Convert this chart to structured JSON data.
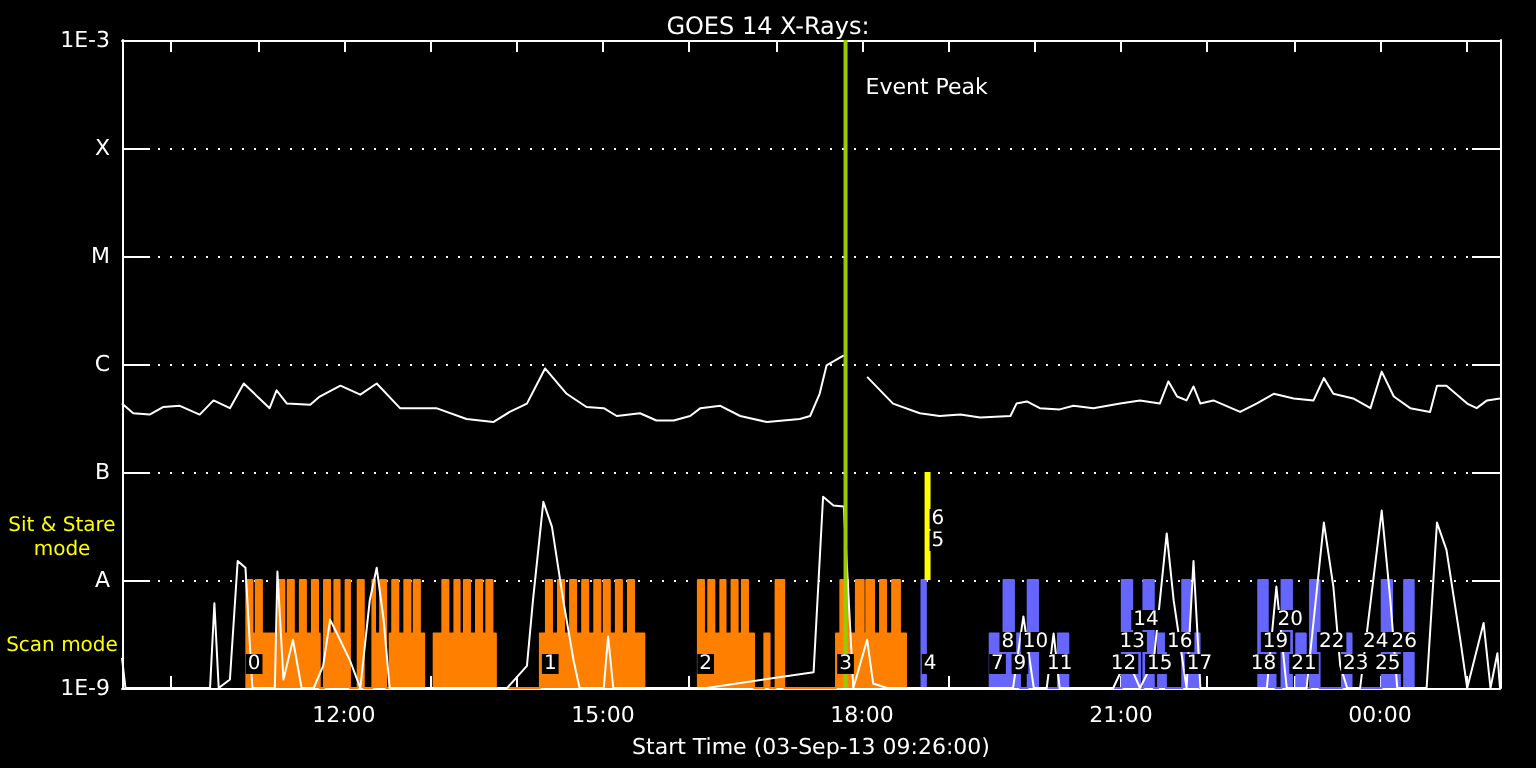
{
  "chart_data": {
    "type": "line",
    "title": "GOES 14 X-Rays:",
    "xlabel": "Start Time (03-Sep-13 09:26:00)",
    "xlim": [
      9.43,
      25.39
    ],
    "xticks": [
      {
        "value": 10,
        "label": null
      },
      {
        "value": 11,
        "label": null
      },
      {
        "value": 12,
        "label": "12:00"
      },
      {
        "value": 13,
        "label": null
      },
      {
        "value": 14,
        "label": null
      },
      {
        "value": 15,
        "label": "15:00"
      },
      {
        "value": 16,
        "label": null
      },
      {
        "value": 17,
        "label": null
      },
      {
        "value": 18,
        "label": "18:00"
      },
      {
        "value": 19,
        "label": null
      },
      {
        "value": 20,
        "label": null
      },
      {
        "value": 21,
        "label": "21:00"
      },
      {
        "value": 22,
        "label": null
      },
      {
        "value": 23,
        "label": null
      },
      {
        "value": 24,
        "label": "00:00"
      },
      {
        "value": 25,
        "label": null
      }
    ],
    "log": true,
    "ylim": [
      1e-09,
      0.001
    ],
    "yticks": [
      {
        "value": 1e-09,
        "label": "1E-9"
      },
      {
        "value": 1e-08,
        "label": "A"
      },
      {
        "value": 1e-07,
        "label": "B"
      },
      {
        "value": 1e-06,
        "label": "C"
      },
      {
        "value": 1e-05,
        "label": "M"
      },
      {
        "value": 0.0001,
        "label": "X"
      },
      {
        "value": 0.001,
        "label": "1E-3"
      }
    ],
    "grid": "y",
    "series": [
      {
        "type": "area",
        "color": "#ff8000",
        "x": [
          10.87,
          10.87,
          10.94,
          10.94,
          10.98,
          10.98,
          11.05,
          11.05,
          11.24,
          11.24,
          11.31,
          11.31,
          11.35,
          11.35,
          11.42,
          11.42,
          11.49,
          11.49,
          11.56,
          11.56,
          11.63,
          11.63,
          11.7,
          11.7,
          11.72,
          11.72,
          11.77,
          11.77,
          11.84,
          11.84,
          11.89,
          11.89,
          11.95,
          11.95,
          12.02,
          12.02,
          12.07,
          12.07,
          12.16,
          12.16,
          12.23,
          12.23,
          12.33,
          12.33,
          12.36,
          12.36,
          12.42,
          12.42,
          12.49,
          12.49,
          12.53,
          12.53,
          12.56,
          12.56,
          12.63,
          12.63,
          12.7,
          12.7,
          12.77,
          12.77,
          12.81,
          12.81,
          12.88,
          12.88,
          12.93,
          12.93,
          13.04,
          13.04,
          13.14,
          13.14,
          13.21,
          13.21,
          13.28,
          13.28,
          13.34,
          13.34,
          13.39,
          13.39,
          13.46,
          13.46,
          13.53,
          13.53,
          13.6,
          13.6,
          13.65,
          13.65,
          13.72,
          13.72,
          13.76,
          13.76,
          14.27,
          14.27,
          14.34,
          14.34,
          14.41,
          14.41,
          14.48,
          14.48,
          14.55,
          14.55,
          14.62,
          14.62,
          14.69,
          14.69,
          14.76,
          14.76,
          14.83,
          14.83,
          14.9,
          14.9,
          14.97,
          14.97,
          15.01,
          15.01,
          15.08,
          15.08,
          15.15,
          15.15,
          15.22,
          15.22,
          15.29,
          15.29,
          15.36,
          15.36,
          15.48,
          15.48,
          16.1,
          16.1,
          16.17,
          16.17,
          16.22,
          16.22,
          16.29,
          16.29,
          16.36,
          16.36,
          16.42,
          16.42,
          16.49,
          16.49,
          16.56,
          16.56,
          16.61,
          16.61,
          16.68,
          16.68,
          16.75,
          16.75,
          16.87,
          16.87,
          16.93,
          16.93,
          17.0,
          17.0,
          17.1,
          17.1,
          17.7,
          17.7,
          17.75,
          17.75,
          17.84,
          17.84,
          17.93,
          17.93,
          18.02,
          18.02,
          18.05,
          18.05,
          18.14,
          18.14,
          18.21,
          18.21,
          18.28,
          18.28,
          18.35,
          18.35,
          18.44,
          18.44,
          18.51,
          18.51
        ],
        "values": [
          1e-09,
          1e-08,
          1e-08,
          3.2e-09,
          3.2e-09,
          1e-08,
          1e-08,
          3.2e-09,
          3.2e-09,
          1e-08,
          1e-08,
          3.2e-09,
          3.2e-09,
          1e-08,
          1e-08,
          3.2e-09,
          3.2e-09,
          1e-08,
          1e-08,
          3.2e-09,
          3.2e-09,
          1e-08,
          1e-08,
          3.2e-09,
          3.2e-09,
          1e-09,
          1e-09,
          1e-08,
          1e-08,
          3.2e-09,
          3.2e-09,
          1e-08,
          1e-08,
          3.2e-09,
          3.2e-09,
          1e-08,
          1e-08,
          1e-09,
          1e-09,
          1e-08,
          1e-08,
          1e-09,
          1e-09,
          1e-08,
          1e-08,
          3.2e-09,
          3.2e-09,
          1e-08,
          1e-08,
          1e-09,
          1e-09,
          3.2e-09,
          3.2e-09,
          1e-08,
          1e-08,
          3.2e-09,
          3.2e-09,
          1e-08,
          1e-08,
          3.2e-09,
          3.2e-09,
          1e-08,
          1e-08,
          3.2e-09,
          3.2e-09,
          1e-09,
          1e-09,
          3.2e-09,
          3.2e-09,
          1e-08,
          1e-08,
          3.2e-09,
          3.2e-09,
          1e-08,
          1e-08,
          3.2e-09,
          3.2e-09,
          1e-08,
          1e-08,
          3.2e-09,
          3.2e-09,
          1e-08,
          1e-08,
          3.2e-09,
          3.2e-09,
          1e-08,
          1e-08,
          3.2e-09,
          3.2e-09,
          1e-09,
          1e-09,
          3.2e-09,
          3.2e-09,
          1e-08,
          1e-08,
          3.2e-09,
          3.2e-09,
          1e-08,
          1e-08,
          3.2e-09,
          3.2e-09,
          1e-08,
          1e-08,
          3.2e-09,
          3.2e-09,
          1e-08,
          1e-08,
          3.2e-09,
          3.2e-09,
          1e-08,
          1e-08,
          3.2e-09,
          3.2e-09,
          1e-08,
          1e-08,
          3.2e-09,
          3.2e-09,
          1e-08,
          1e-08,
          3.2e-09,
          3.2e-09,
          1e-08,
          1e-08,
          3.2e-09,
          3.2e-09,
          1e-09,
          1e-09,
          1e-08,
          1e-08,
          3.2e-09,
          3.2e-09,
          1e-08,
          1e-08,
          3.2e-09,
          3.2e-09,
          1e-08,
          1e-08,
          3.2e-09,
          3.2e-09,
          1e-08,
          1e-08,
          3.2e-09,
          3.2e-09,
          1e-08,
          1e-08,
          3.2e-09,
          3.2e-09,
          1e-09,
          1e-09,
          3.2e-09,
          3.2e-09,
          1e-09,
          1e-09,
          1e-08,
          1e-08,
          1e-09,
          1e-09,
          3.2e-09,
          3.2e-09,
          1e-08,
          1e-08,
          3.2e-09,
          3.2e-09,
          1e-08,
          1e-08,
          3.2e-09,
          3.2e-09,
          1e-08,
          1e-08,
          3.2e-09,
          3.2e-09,
          1e-08,
          1e-08,
          3.2e-09,
          3.2e-09,
          1e-08,
          1e-08,
          3.2e-09,
          3.2e-09,
          1e-09
        ]
      },
      {
        "type": "area",
        "color": "#6666ff",
        "x": [
          18.69,
          18.69,
          18.74,
          18.74,
          19.48,
          19.48,
          19.64,
          19.64,
          19.76,
          19.76,
          19.83,
          19.83,
          19.92,
          19.92,
          20.04,
          20.04,
          20.27,
          20.27,
          20.39,
          20.39,
          21.01,
          21.01,
          21.13,
          21.13,
          21.22,
          21.22,
          21.26,
          21.26,
          21.38,
          21.38,
          21.43,
          21.43,
          21.52,
          21.52,
          21.71,
          21.71,
          21.8,
          21.8,
          21.91,
          21.91,
          22.59,
          22.59,
          22.7,
          22.7,
          22.79,
          22.79,
          22.86,
          22.86,
          22.98,
          22.98,
          23.03,
          23.03,
          23.14,
          23.14,
          23.19,
          23.19,
          23.3,
          23.3,
          23.56,
          23.56,
          23.67,
          23.67,
          24.02,
          24.02,
          24.14,
          24.14,
          24.23,
          24.23,
          24.28,
          24.28,
          24.39,
          24.39
        ],
        "values": [
          1e-09,
          1e-08,
          1e-08,
          1e-09,
          1e-09,
          3.2e-09,
          3.2e-09,
          1e-08,
          1e-08,
          3.2e-09,
          3.2e-09,
          1e-09,
          1e-09,
          1e-08,
          1e-08,
          1e-09,
          1e-09,
          3.2e-09,
          3.2e-09,
          1e-09,
          1e-09,
          1e-08,
          1e-08,
          3.2e-09,
          3.2e-09,
          1e-09,
          1e-09,
          1e-08,
          1e-08,
          1e-09,
          1e-09,
          3.2e-09,
          3.2e-09,
          1e-09,
          1e-09,
          1e-08,
          1e-08,
          3.2e-09,
          3.2e-09,
          1e-09,
          1e-09,
          1e-08,
          1e-08,
          3.2e-09,
          3.2e-09,
          1e-09,
          1e-09,
          1e-08,
          1e-08,
          1e-09,
          1e-09,
          3.2e-09,
          3.2e-09,
          1e-09,
          1e-09,
          1e-08,
          1e-08,
          1e-09,
          1e-09,
          3.2e-09,
          3.2e-09,
          1e-09,
          1e-09,
          1e-08,
          1e-08,
          3.2e-09,
          3.2e-09,
          1e-09,
          1e-09,
          1e-08,
          1e-08,
          1e-09
        ]
      },
      {
        "color": "#ffff00",
        "x": [
          18.76,
          18.76
        ],
        "values": [
          1e-08,
          1e-07
        ]
      },
      {
        "color": "#ffffff",
        "x": [
          9.43,
          9.56,
          9.75,
          9.91,
          10.1,
          10.33,
          10.49,
          10.68,
          10.84,
          11.14,
          11.22,
          11.34,
          11.61,
          11.72,
          11.96,
          12.19,
          12.38,
          12.65,
          13.07,
          13.42,
          13.73,
          13.92,
          14.12,
          14.33,
          14.58,
          14.81,
          15.01,
          15.16,
          15.43,
          15.62,
          15.82,
          16.01,
          16.13,
          16.36,
          16.59,
          16.9,
          17.28,
          17.4,
          17.51,
          17.59,
          17.79,
          17.95,
          18.06,
          18.36,
          18.67,
          18.9,
          19.14,
          19.37,
          19.72,
          19.79,
          19.91,
          20.06,
          20.29,
          20.45,
          20.68,
          20.99,
          21.22,
          21.45,
          21.55,
          21.65,
          21.76,
          21.84,
          21.92,
          22.07,
          22.38,
          22.57,
          22.77,
          23.0,
          23.23,
          23.35,
          23.46,
          23.69,
          23.89,
          24.02,
          24.16,
          24.35,
          24.58,
          24.66,
          24.77,
          25.01,
          25.12,
          25.24,
          25.39
        ],
        "values": [
          4.3e-07,
          3.5e-07,
          3.4e-07,
          4e-07,
          4.1e-07,
          3.4e-07,
          4.6e-07,
          3.9e-07,
          6.6e-07,
          3.9e-07,
          5.7e-07,
          4.3e-07,
          4.2e-07,
          5e-07,
          6.3e-07,
          5.2e-07,
          6.6e-07,
          3.9e-07,
          3.9e-07,
          3.1e-07,
          2.9e-07,
          3.6e-07,
          4.3e-07,
          9.1e-07,
          5.3e-07,
          4e-07,
          3.9e-07,
          3.3e-07,
          3.5e-07,
          3e-07,
          3e-07,
          3.3e-07,
          3.9e-07,
          4.1e-07,
          3.3e-07,
          2.9e-07,
          3.1e-07,
          3.3e-07,
          5.3e-07,
          9.7e-07,
          1.2e-06,
          null,
          7.6e-07,
          4.3e-07,
          3.5e-07,
          3.3e-07,
          3.4e-07,
          3.2e-07,
          3.3e-07,
          4.3e-07,
          4.5e-07,
          3.9e-07,
          3.8e-07,
          4.1e-07,
          3.9e-07,
          4.3e-07,
          4.6e-07,
          4.3e-07,
          6.9e-07,
          5e-07,
          4.6e-07,
          6.2e-07,
          4.3e-07,
          4.6e-07,
          3.6e-07,
          4.3e-07,
          5.3e-07,
          4.8e-07,
          4.6e-07,
          7.4e-07,
          5.3e-07,
          4.8e-07,
          3.9e-07,
          8.5e-07,
          5e-07,
          3.9e-07,
          3.6e-07,
          6.3e-07,
          6.3e-07,
          4.3e-07,
          3.9e-07,
          4.6e-07,
          4.8e-07
        ]
      },
      {
        "color": "#ffffff",
        "x": [
          9.43,
          9.47,
          9.95,
          10.45,
          10.5,
          10.55,
          10.68,
          10.77,
          10.86,
          10.94,
          11.2,
          11.23,
          11.3,
          11.41,
          11.51,
          11.65,
          11.76,
          11.84,
          11.92,
          12.07,
          12.19,
          12.3,
          12.38,
          12.46,
          12.53,
          13.89,
          14.12,
          14.19,
          14.31,
          14.41,
          14.54,
          14.66,
          14.73,
          15.01,
          15.06,
          15.12,
          16.2,
          17.44,
          17.55,
          17.67,
          17.79,
          17.9,
          18.06,
          18.13,
          18.29,
          19.75,
          19.87,
          19.99,
          20.14,
          20.22,
          20.29,
          20.91,
          21.03,
          21.14,
          21.22,
          21.38,
          21.53,
          21.61,
          21.76,
          21.84,
          21.92,
          22.69,
          22.8,
          22.92,
          23.15,
          23.35,
          23.46,
          23.54,
          23.62,
          23.77,
          24.02,
          24.12,
          24.2,
          24.54,
          24.66,
          24.77,
          24.93,
          25.01,
          25.2,
          25.28,
          25.36,
          25.39
        ],
        "values": [
          1.9e-09,
          1e-09,
          1e-09,
          1e-09,
          6.1e-09,
          1e-09,
          1.2e-09,
          1.5e-08,
          1.3e-08,
          1e-09,
          1e-09,
          1.2e-08,
          1.2e-09,
          2.8e-09,
          1e-09,
          1e-09,
          1.6e-09,
          4.3e-09,
          3.2e-09,
          1.8e-09,
          1e-09,
          6.5e-09,
          1.3e-08,
          4.3e-09,
          1e-09,
          1e-09,
          1.6e-09,
          6.5e-09,
          5.3e-08,
          3.1e-08,
          6.5e-09,
          1.8e-09,
          1e-09,
          1e-09,
          3e-09,
          1e-09,
          1e-09,
          1.4e-09,
          5.9e-08,
          4.9e-08,
          4.8e-08,
          1e-09,
          2.8e-09,
          1.1e-09,
          1e-09,
          1e-09,
          4.6e-09,
          1e-09,
          1e-09,
          3.2e-09,
          1e-09,
          1e-09,
          1.6e-09,
          1.4e-09,
          1e-09,
          1.8e-09,
          2.7e-08,
          6.5e-09,
          1e-09,
          1.5e-08,
          1e-09,
          1e-09,
          8.7e-09,
          1e-09,
          1e-09,
          3.4e-08,
          8.7e-09,
          1.6e-09,
          1e-09,
          1e-09,
          4.4e-08,
          6.5e-09,
          1e-09,
          1e-09,
          3.4e-08,
          1.9e-08,
          2.8e-09,
          1e-09,
          4e-09,
          1e-09,
          2.1e-09,
          1e-09
        ]
      }
    ],
    "ref_lines": [
      {
        "axis": "x",
        "value": 17.81,
        "label": "Event Peak",
        "color": "#99cc00"
      }
    ],
    "annotations": [
      "Sit & Stare\nmode",
      "Scan mode",
      {
        "text": "0",
        "x": 10.96
      },
      {
        "text": "1",
        "x": 14.39
      },
      {
        "text": "2",
        "x": 16.19
      },
      {
        "text": "3",
        "x": 17.81
      },
      {
        "text": "4",
        "x": 18.79
      },
      {
        "text": "5",
        "x": 18.88,
        "y": 2.3e-08
      },
      {
        "text": "6",
        "x": 18.88,
        "y": 2.3e-08
      },
      {
        "text": "7",
        "x": 19.57
      },
      {
        "text": "8",
        "x": 19.69
      },
      {
        "text": "9",
        "x": 19.83
      },
      {
        "text": "10",
        "x": 20.01
      },
      {
        "text": "11",
        "x": 20.29
      },
      {
        "text": "12",
        "x": 21.03
      },
      {
        "text": "13",
        "x": 21.13
      },
      {
        "text": "14",
        "x": 21.29
      },
      {
        "text": "15",
        "x": 21.45
      },
      {
        "text": "16",
        "x": 21.68
      },
      {
        "text": "17",
        "x": 21.91
      },
      {
        "text": "18",
        "x": 22.65
      },
      {
        "text": "19",
        "x": 22.79
      },
      {
        "text": "20",
        "x": 22.96
      },
      {
        "text": "21",
        "x": 23.12
      },
      {
        "text": "22",
        "x": 23.44
      },
      {
        "text": "23",
        "x": 23.72
      },
      {
        "text": "24",
        "x": 23.95
      },
      {
        "text": "25",
        "x": 24.09
      },
      {
        "text": "26",
        "x": 24.28
      }
    ]
  }
}
